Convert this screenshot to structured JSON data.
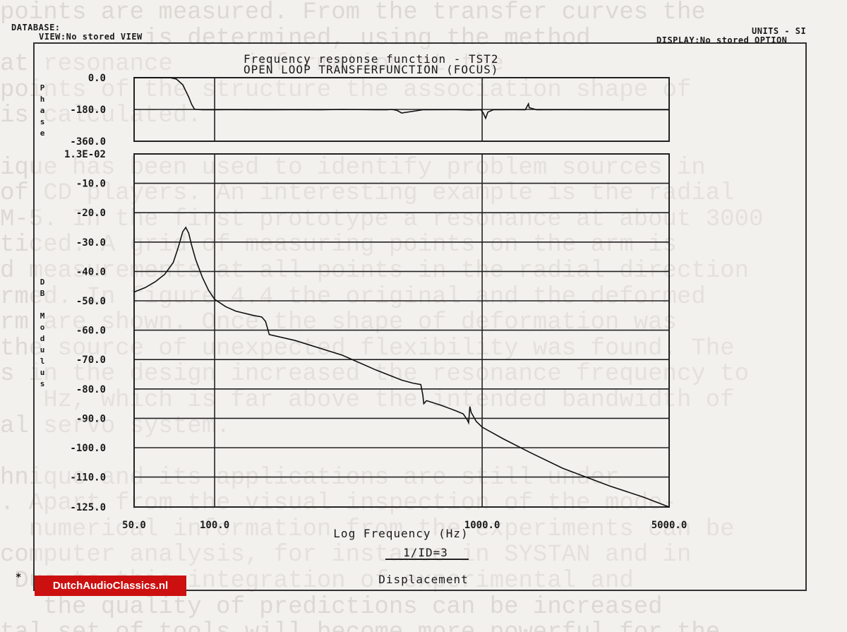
{
  "background_text": [
    "points are measured. From the transfer curves the",
    "          is determined, using the method",
    "at resonance     information at the",
    "points of the structure the association shape of",
    "is calculated.",
    "",
    "ique has been used to identify problem sources in",
    "of CD players. An interesting example is the radial",
    "M-5. In the first prototype a resonance at about 3000",
    "ticed. A grid of measuring points on the arm is",
    "d measurements at all points in the radial direction",
    "rmed. In figure 4.4 the original and the deformed",
    "rm are shown. Once the shape of deformation was",
    "the source of unexpected flexibility was found. The",
    "s in the design increased the resonance frequency to",
    "   Hz, which is far above the intended bandwidth of",
    "al servo system.",
    "",
    "hnique and its applications are still under",
    ". Apart from the visual inspection of the mode-",
    "  numerical information from the experiments can be",
    "computer analysis, for instance in SYSTAN and in",
    " Due to this integration of experimental and",
    "   the quality of predictions can be increased",
    "tal set of tools will become more powerful for the"
  ],
  "header": {
    "database_label": "DATABASE:",
    "view_label": "VIEW:No stored VIEW",
    "units_label": "UNITS - SI",
    "display_label": "DISPLAY:No stored OPTION"
  },
  "title_line1": "Frequency response function - TST2",
  "title_line2": "OPEN LOOP TRANSFERFUNCTION (FOCUS)",
  "footer": {
    "id_label": "1/ID=3",
    "displacement_label": "Displacement",
    "marker": "*"
  },
  "watermark": "DutchAudioClassics.nl",
  "chart_data": [
    {
      "type": "line",
      "xscale": "log",
      "ylabel": "Phase",
      "yticks": [
        "0.0",
        "-180.0",
        "-360.0"
      ],
      "ylim": [
        -360,
        0
      ],
      "xlim": [
        50,
        5000
      ],
      "grid": true,
      "series": [
        {
          "x": [
            50,
            62,
            68,
            72,
            76,
            80,
            82,
            84,
            86,
            90,
            95,
            100,
            110,
            120,
            140,
            160,
            200,
            250,
            300,
            400,
            440,
            460,
            480,
            500,
            600,
            800,
            900,
            990,
            1010,
            1030,
            1050,
            1100,
            1300,
            1450,
            1470,
            1490,
            1500,
            1600,
            2000,
            3000,
            5000
          ],
          "y": [
            0,
            0,
            0,
            -8,
            -40,
            -110,
            -150,
            -178,
            -180,
            -182,
            -182,
            -182,
            -181,
            -181,
            -182,
            -182,
            -181,
            -182,
            -180,
            -182,
            -182,
            -180,
            -185,
            -200,
            -182,
            -181,
            -183,
            -182,
            -200,
            -230,
            -195,
            -182,
            -181,
            -182,
            -165,
            -148,
            -170,
            -182,
            -181,
            -182,
            -182
          ]
        }
      ]
    },
    {
      "type": "line",
      "xscale": "log",
      "ylabel": "DB Modulus",
      "xlabel": "Log Frequency (Hz)",
      "yticks": [
        "1.3E-02",
        "-10.0",
        "-20.0",
        "-30.0",
        "-40.0",
        "-50.0",
        "-60.0",
        "-70.0",
        "-80.0",
        "-90.0",
        "-100.0",
        "-110.0",
        "-125.0"
      ],
      "xticks": [
        "50.0",
        "100.0",
        "1000.0",
        "5000.0"
      ],
      "xlim": [
        50,
        5000
      ],
      "ylim": [
        -125,
        0
      ],
      "grid": true,
      "series": [
        {
          "x": [
            50,
            55,
            60,
            65,
            70,
            73,
            76,
            78,
            80,
            82,
            85,
            90,
            95,
            100,
            110,
            120,
            140,
            150,
            155,
            160,
            200,
            300,
            400,
            500,
            550,
            590,
            600,
            605,
            620,
            700,
            800,
            850,
            880,
            890,
            900,
            910,
            950,
            1000,
            1200,
            1500,
            2000,
            3000,
            4000,
            5000
          ],
          "y": [
            -47,
            -45.5,
            -43.5,
            -41,
            -37,
            -32,
            -26.5,
            -25,
            -27,
            -31,
            -36,
            -42,
            -46.5,
            -49.5,
            -52,
            -53.5,
            -55,
            -55.5,
            -57,
            -61.5,
            -63.5,
            -68.5,
            -73.5,
            -77,
            -78,
            -78.5,
            -82,
            -85,
            -84,
            -85.5,
            -87.5,
            -88.5,
            -90.5,
            -91.5,
            -86,
            -88,
            -91,
            -93,
            -97,
            -101.5,
            -107,
            -114.5,
            -120,
            -125
          ]
        }
      ]
    }
  ]
}
